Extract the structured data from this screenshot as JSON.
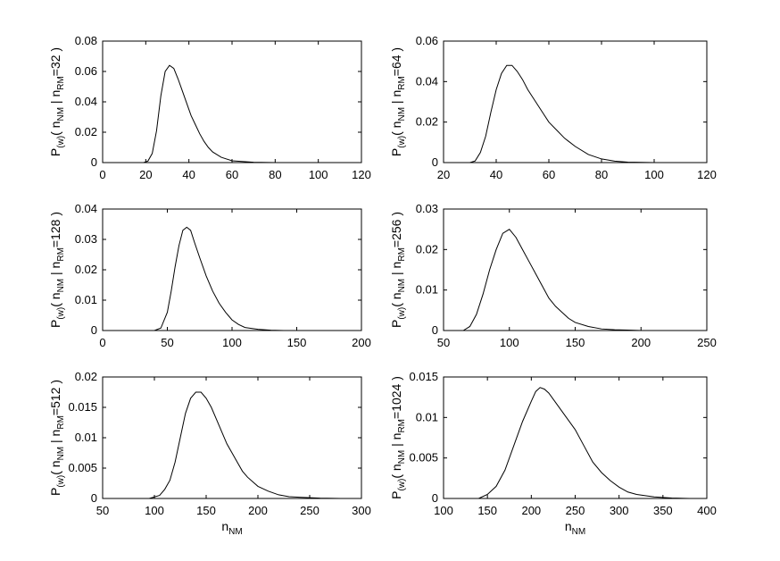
{
  "figure": {
    "xlabel_main": "n",
    "xlabel_sub": "NM"
  },
  "chart_data": [
    {
      "type": "line",
      "ylabel": "P(w)( nNM | nRM=32 )",
      "ylabel_parts": {
        "p": "P",
        "w": "(w)",
        "open": "( n",
        "nm": "NM",
        "bar": " | n",
        "rm": "RM",
        "cond": "=32 )"
      },
      "xlabel": "",
      "xlim": [
        0,
        120
      ],
      "ylim": [
        0,
        0.08
      ],
      "xticks": [
        0,
        20,
        40,
        60,
        80,
        100,
        120
      ],
      "yticks": [
        0,
        0.02,
        0.04,
        0.06,
        0.08
      ],
      "ytick_labels": [
        "0",
        "0.02",
        "0.04",
        "0.06",
        "0.08"
      ],
      "x": [
        19,
        21,
        23,
        25,
        27,
        29,
        31,
        33,
        35,
        37,
        39,
        41,
        43,
        45,
        47,
        49,
        51,
        55,
        60,
        70,
        80
      ],
      "y": [
        0,
        0.001,
        0.006,
        0.021,
        0.044,
        0.06,
        0.064,
        0.062,
        0.055,
        0.047,
        0.039,
        0.031,
        0.025,
        0.019,
        0.014,
        0.01,
        0.007,
        0.0035,
        0.0012,
        0.0002,
        0
      ]
    },
    {
      "type": "line",
      "ylabel": "P(w)( nNM | nRM=64 )",
      "ylabel_parts": {
        "p": "P",
        "w": "(w)",
        "open": "( n",
        "nm": "NM",
        "bar": " | n",
        "rm": "RM",
        "cond": "=64 )"
      },
      "xlabel": "",
      "xlim": [
        20,
        120
      ],
      "ylim": [
        0,
        0.06
      ],
      "xticks": [
        20,
        40,
        60,
        80,
        100,
        120
      ],
      "yticks": [
        0,
        0.02,
        0.04,
        0.06
      ],
      "ytick_labels": [
        "0",
        "0.02",
        "0.04",
        "0.06"
      ],
      "x": [
        30,
        32,
        34,
        36,
        38,
        40,
        42,
        44,
        46,
        48,
        50,
        52,
        55,
        58,
        60,
        63,
        66,
        70,
        75,
        80,
        85,
        90,
        100
      ],
      "y": [
        0,
        0.0008,
        0.005,
        0.013,
        0.025,
        0.036,
        0.044,
        0.048,
        0.048,
        0.045,
        0.041,
        0.036,
        0.03,
        0.024,
        0.02,
        0.016,
        0.012,
        0.008,
        0.004,
        0.0018,
        0.0007,
        0.0002,
        0
      ]
    },
    {
      "type": "line",
      "ylabel": "P(w)( nNM | nRM=128 )",
      "ylabel_parts": {
        "p": "P",
        "w": "(w)",
        "open": "( n",
        "nm": "NM",
        "bar": " | n",
        "rm": "RM",
        "cond": "=128 )"
      },
      "xlabel": "",
      "xlim": [
        0,
        200
      ],
      "ylim": [
        0,
        0.04
      ],
      "xticks": [
        0,
        50,
        100,
        150,
        200
      ],
      "yticks": [
        0,
        0.01,
        0.02,
        0.03,
        0.04
      ],
      "ytick_labels": [
        "0",
        "0.01",
        "0.02",
        "0.03",
        "0.04"
      ],
      "x": [
        40,
        45,
        50,
        53,
        56,
        59,
        62,
        65,
        68,
        71,
        75,
        80,
        85,
        90,
        95,
        100,
        105,
        110,
        120,
        130,
        140
      ],
      "y": [
        0,
        0.0008,
        0.006,
        0.013,
        0.021,
        0.028,
        0.033,
        0.034,
        0.033,
        0.029,
        0.024,
        0.018,
        0.013,
        0.009,
        0.006,
        0.0035,
        0.002,
        0.001,
        0.0004,
        0.0001,
        0
      ]
    },
    {
      "type": "line",
      "ylabel": "P(w)( nNM | nRM=256 )",
      "ylabel_parts": {
        "p": "P",
        "w": "(w)",
        "open": "( n",
        "nm": "NM",
        "bar": " | n",
        "rm": "RM",
        "cond": "=256 )"
      },
      "xlabel": "",
      "xlim": [
        50,
        250
      ],
      "ylim": [
        0,
        0.03
      ],
      "xticks": [
        50,
        100,
        150,
        200,
        250
      ],
      "yticks": [
        0,
        0.01,
        0.02,
        0.03
      ],
      "ytick_labels": [
        "0",
        "0.01",
        "0.02",
        "0.03"
      ],
      "x": [
        65,
        70,
        75,
        80,
        85,
        90,
        95,
        100,
        105,
        110,
        115,
        120,
        125,
        130,
        135,
        140,
        145,
        150,
        160,
        170,
        180,
        190,
        200
      ],
      "y": [
        0,
        0.001,
        0.004,
        0.009,
        0.015,
        0.02,
        0.024,
        0.025,
        0.023,
        0.02,
        0.017,
        0.014,
        0.011,
        0.008,
        0.006,
        0.0045,
        0.003,
        0.002,
        0.001,
        0.0004,
        0.0002,
        0.0001,
        0
      ]
    },
    {
      "type": "line",
      "ylabel": "P(w)( nNM | nRM=512 )",
      "ylabel_parts": {
        "p": "P",
        "w": "(w)",
        "open": "( n",
        "nm": "NM",
        "bar": " | n",
        "rm": "RM",
        "cond": "=512 )"
      },
      "xlabel": "nNM",
      "xlim": [
        50,
        300
      ],
      "ylim": [
        0,
        0.02
      ],
      "xticks": [
        50,
        100,
        150,
        200,
        250,
        300
      ],
      "yticks": [
        0,
        0.005,
        0.01,
        0.015,
        0.02
      ],
      "ytick_labels": [
        "0",
        "0.005",
        "0.01",
        "0.015",
        "0.02"
      ],
      "x": [
        95,
        105,
        110,
        115,
        120,
        125,
        130,
        135,
        140,
        145,
        150,
        155,
        160,
        165,
        170,
        175,
        180,
        185,
        190,
        200,
        210,
        220,
        230,
        240,
        260,
        280
      ],
      "y": [
        0,
        0.0005,
        0.0015,
        0.003,
        0.006,
        0.01,
        0.014,
        0.0165,
        0.0175,
        0.0175,
        0.0165,
        0.015,
        0.013,
        0.011,
        0.009,
        0.0075,
        0.006,
        0.0045,
        0.0035,
        0.002,
        0.0012,
        0.0006,
        0.0003,
        0.0002,
        5e-05,
        0
      ]
    },
    {
      "type": "line",
      "ylabel": "P(w)( nNM | nRM=1024 )",
      "ylabel_parts": {
        "p": "P",
        "w": "(w)",
        "open": "( n",
        "nm": "NM",
        "bar": " | n",
        "rm": "RM",
        "cond": "=1024 )"
      },
      "xlabel": "nNM",
      "xlim": [
        100,
        400
      ],
      "ylim": [
        0,
        0.015
      ],
      "xticks": [
        100,
        150,
        200,
        250,
        300,
        350,
        400
      ],
      "yticks": [
        0,
        0.005,
        0.01,
        0.015
      ],
      "ytick_labels": [
        "0",
        "0.005",
        "0.01",
        "0.015"
      ],
      "x": [
        140,
        150,
        160,
        170,
        180,
        190,
        200,
        205,
        210,
        215,
        220,
        230,
        240,
        250,
        260,
        270,
        280,
        290,
        300,
        310,
        320,
        340,
        360,
        380
      ],
      "y": [
        0,
        0.0005,
        0.0015,
        0.0035,
        0.0065,
        0.0095,
        0.012,
        0.0132,
        0.0137,
        0.0135,
        0.013,
        0.0115,
        0.01,
        0.0085,
        0.0065,
        0.0045,
        0.0032,
        0.0022,
        0.0014,
        0.0008,
        0.0005,
        0.0002,
        5e-05,
        0
      ]
    }
  ]
}
